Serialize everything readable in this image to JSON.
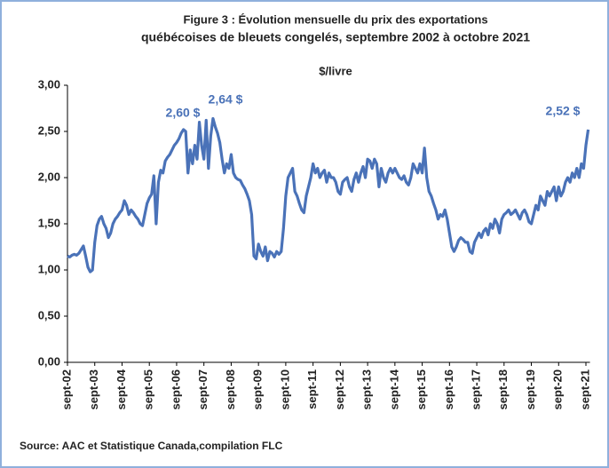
{
  "chart_data": {
    "type": "line",
    "title": "Figure 3  : Évolution mensuelle du prix des exportations",
    "title_line2": "québécoises de bleuets congelés, septembre 2002 à octobre 2021",
    "subtitle": "$/livre",
    "source": "Source: AAC et Statistique Canada,compilation FLC",
    "annotations": [
      "2,60 $",
      "2,64 $",
      "2,52 $"
    ],
    "categories": [
      "sept-02",
      null,
      null,
      null,
      null,
      null,
      null,
      null,
      null,
      null,
      null,
      null,
      "sept-03",
      null,
      null,
      null,
      null,
      null,
      null,
      null,
      null,
      null,
      null,
      null,
      "sept-04",
      null,
      null,
      null,
      null,
      null,
      null,
      null,
      null,
      null,
      null,
      null,
      "sept-05",
      null,
      null,
      null,
      null,
      null,
      null,
      null,
      null,
      null,
      null,
      null,
      "sept-06",
      null,
      null,
      null,
      null,
      null,
      null,
      null,
      null,
      null,
      null,
      null,
      "sept-07",
      null,
      null,
      null,
      null,
      null,
      null,
      null,
      null,
      null,
      null,
      null,
      "sept-08",
      null,
      null,
      null,
      null,
      null,
      null,
      null,
      null,
      null,
      null,
      null,
      "sept-09",
      null,
      null,
      null,
      null,
      null,
      null,
      null,
      null,
      null,
      null,
      null,
      "sept-10",
      null,
      null,
      null,
      null,
      null,
      null,
      null,
      null,
      null,
      null,
      null,
      "sept-11",
      null,
      null,
      null,
      null,
      null,
      null,
      null,
      null,
      null,
      null,
      null,
      "sept-12",
      null,
      null,
      null,
      null,
      null,
      null,
      null,
      null,
      null,
      null,
      null,
      "sept-13",
      null,
      null,
      null,
      null,
      null,
      null,
      null,
      null,
      null,
      null,
      null,
      "sept-14",
      null,
      null,
      null,
      null,
      null,
      null,
      null,
      null,
      null,
      null,
      null,
      "sept-15",
      null,
      null,
      null,
      null,
      null,
      null,
      null,
      null,
      null,
      null,
      null,
      "sept-16",
      null,
      null,
      null,
      null,
      null,
      null,
      null,
      null,
      null,
      null,
      null,
      "sept-17",
      null,
      null,
      null,
      null,
      null,
      null,
      null,
      null,
      null,
      null,
      null,
      "sept-18",
      null,
      null,
      null,
      null,
      null,
      null,
      null,
      null,
      null,
      null,
      null,
      "sept-19",
      null,
      null,
      null,
      null,
      null,
      null,
      null,
      null,
      null,
      null,
      null,
      "sept-20",
      null,
      null,
      null,
      null,
      null,
      null,
      null,
      null,
      null,
      null,
      null,
      "sept-21",
      null
    ],
    "series": [
      {
        "name": "Prix",
        "color": "#4a72b8",
        "values": [
          1.15,
          1.14,
          1.16,
          1.17,
          1.16,
          1.18,
          1.22,
          1.26,
          1.15,
          1.03,
          0.98,
          1.0,
          1.3,
          1.48,
          1.55,
          1.58,
          1.5,
          1.45,
          1.35,
          1.4,
          1.5,
          1.55,
          1.58,
          1.62,
          1.65,
          1.75,
          1.7,
          1.6,
          1.65,
          1.62,
          1.58,
          1.55,
          1.5,
          1.48,
          1.6,
          1.72,
          1.78,
          1.82,
          2.02,
          1.5,
          1.95,
          2.08,
          2.05,
          2.18,
          2.22,
          2.25,
          2.3,
          2.35,
          2.38,
          2.42,
          2.48,
          2.52,
          2.5,
          2.05,
          2.3,
          2.15,
          2.35,
          2.2,
          2.6,
          2.35,
          2.2,
          2.62,
          2.1,
          2.45,
          2.64,
          2.55,
          2.48,
          2.38,
          2.2,
          2.05,
          2.15,
          2.1,
          2.25,
          2.05,
          2.0,
          1.98,
          1.97,
          1.92,
          1.88,
          1.82,
          1.75,
          1.6,
          1.15,
          1.12,
          1.28,
          1.2,
          1.15,
          1.25,
          1.1,
          1.2,
          1.18,
          1.14,
          1.2,
          1.17,
          1.2,
          1.45,
          1.8,
          2.0,
          2.05,
          2.1,
          1.85,
          1.8,
          1.72,
          1.65,
          1.62,
          1.8,
          1.9,
          2.0,
          2.15,
          2.05,
          2.1,
          2.0,
          2.05,
          2.08,
          1.95,
          2.05,
          2.0,
          2.0,
          1.95,
          1.85,
          1.82,
          1.95,
          1.98,
          2.0,
          1.9,
          1.85,
          1.98,
          2.05,
          1.95,
          2.05,
          2.12,
          2.0,
          2.2,
          2.18,
          2.1,
          2.2,
          2.15,
          1.9,
          2.1,
          2.0,
          1.95,
          2.05,
          2.1,
          2.05,
          2.1,
          2.05,
          2.0,
          1.98,
          2.02,
          1.95,
          1.92,
          2.0,
          2.15,
          2.1,
          2.05,
          2.15,
          2.05,
          2.32,
          2.0,
          1.85,
          1.8,
          1.72,
          1.65,
          1.55,
          1.6,
          1.58,
          1.65,
          1.55,
          1.4,
          1.25,
          1.2,
          1.25,
          1.32,
          1.35,
          1.33,
          1.3,
          1.3,
          1.2,
          1.18,
          1.3,
          1.35,
          1.4,
          1.35,
          1.42,
          1.45,
          1.38,
          1.5,
          1.45,
          1.55,
          1.5,
          1.4,
          1.55,
          1.6,
          1.62,
          1.65,
          1.6,
          1.62,
          1.65,
          1.6,
          1.55,
          1.62,
          1.65,
          1.6,
          1.52,
          1.5,
          1.6,
          1.7,
          1.65,
          1.8,
          1.75,
          1.7,
          1.85,
          1.8,
          1.85,
          1.9,
          1.75,
          1.9,
          1.8,
          1.85,
          1.95,
          2.0,
          1.95,
          2.05,
          2.0,
          2.1,
          2.0,
          2.15,
          2.1,
          2.35,
          2.52
        ]
      }
    ],
    "ylim": [
      0,
      3
    ],
    "yticks": [
      {
        "value": 0,
        "label": "0,00"
      },
      {
        "value": 0.5,
        "label": "0,50"
      },
      {
        "value": 1,
        "label": "1,00"
      },
      {
        "value": 1.5,
        "label": "1,50"
      },
      {
        "value": 2,
        "label": "2,00"
      },
      {
        "value": 2.5,
        "label": "2,50"
      },
      {
        "value": 3,
        "label": "3,00"
      }
    ],
    "grid": false
  }
}
